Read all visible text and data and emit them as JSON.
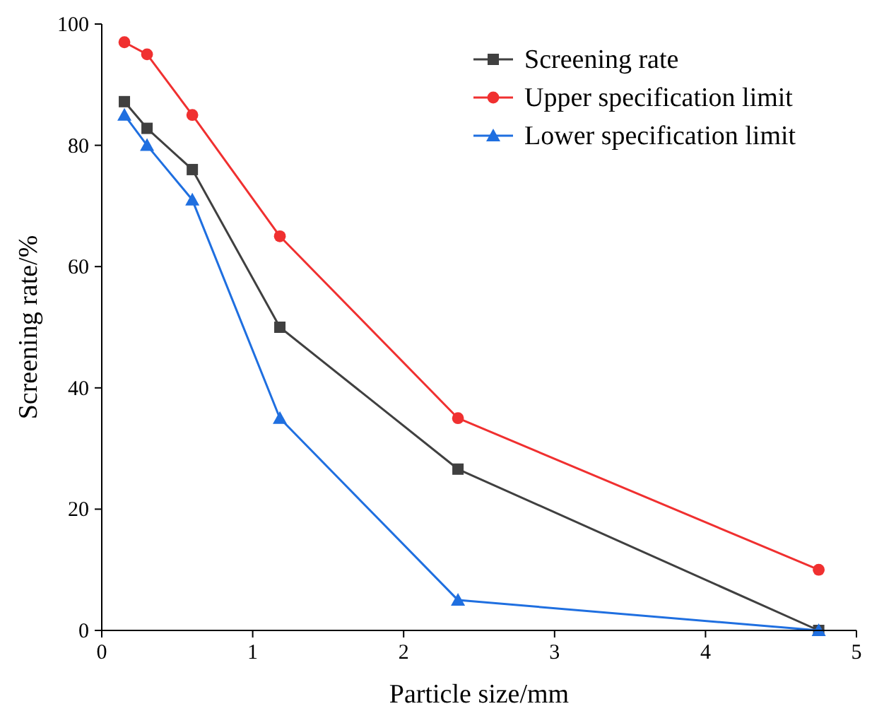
{
  "chart_data": {
    "type": "line",
    "xlabel": "Particle size/mm",
    "ylabel": "Screening rate/%",
    "xlim": [
      0,
      5
    ],
    "xticks": [
      0,
      1,
      2,
      3,
      4,
      5
    ],
    "ylim": [
      0,
      100
    ],
    "yticks": [
      0,
      20,
      40,
      60,
      80,
      100
    ],
    "grid": false,
    "legend": "top right",
    "x": [
      0.15,
      0.3,
      0.6,
      1.18,
      2.36,
      4.75
    ],
    "series": [
      {
        "name": "Screening rate",
        "color": "#404040",
        "marker": "square",
        "values": [
          87.2,
          82.8,
          76,
          50,
          26.6,
          0
        ]
      },
      {
        "name": "Upper specification limit",
        "color": "#f03030",
        "marker": "circle",
        "values": [
          97,
          95,
          85,
          65,
          35,
          10
        ]
      },
      {
        "name": "Lower specification limit",
        "color": "#1f6fe0",
        "marker": "triangle",
        "values": [
          85,
          80,
          71,
          35,
          5,
          0
        ]
      }
    ]
  }
}
